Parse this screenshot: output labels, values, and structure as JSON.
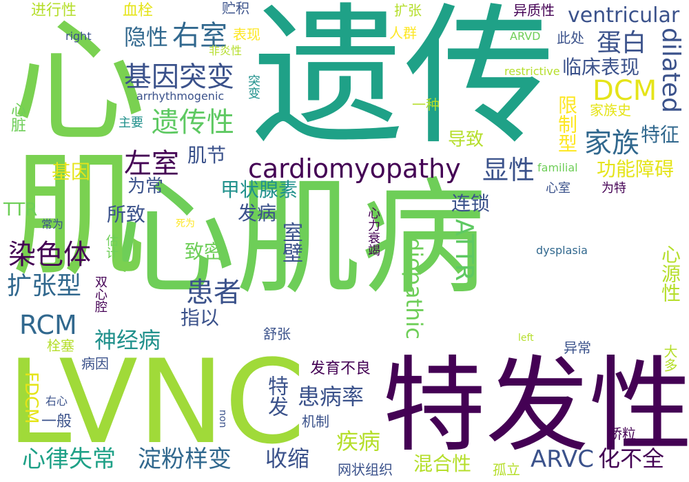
{
  "palette": {
    "purple": "#440154",
    "indigo": "#3b528b",
    "blue": "#31688e",
    "teal": "#21918c",
    "green_teal": "#1fa187",
    "green": "#5ec962",
    "lime": "#8fd744",
    "yellow_green": "#b5de2b",
    "yellow": "#e5e419",
    "pale_yellow": "#fde725"
  },
  "words": [
    {
      "text": "心肌病",
      "color": "#6ece58"
    },
    {
      "text": "遗传",
      "color": "#1fa187"
    },
    {
      "text": "心肌",
      "color": "#7ad151"
    },
    {
      "text": "LVNC",
      "color": "#a0da39"
    },
    {
      "text": "特发性",
      "color": "#440154"
    },
    {
      "text": "cardiomyopathy",
      "color": "#440154"
    },
    {
      "text": "DCM",
      "color": "#e5e419"
    },
    {
      "text": "dilated",
      "color": "#3b528b"
    },
    {
      "text": "ventricular",
      "color": "#3b528b"
    },
    {
      "text": "右室",
      "color": "#31688e"
    },
    {
      "text": "基因突变",
      "color": "#3b528b"
    },
    {
      "text": "遗传性",
      "color": "#5ec962"
    },
    {
      "text": "左室",
      "color": "#440154"
    },
    {
      "text": "肌节",
      "color": "#3b528b"
    },
    {
      "text": "显性",
      "color": "#3b528b"
    },
    {
      "text": "家族",
      "color": "#31688e"
    },
    {
      "text": "染色体",
      "color": "#440154"
    },
    {
      "text": "扩张型",
      "color": "#31688e"
    },
    {
      "text": "患者",
      "color": "#3b528b"
    },
    {
      "text": "RCM",
      "color": "#31688e"
    },
    {
      "text": "神经病",
      "color": "#21918c"
    },
    {
      "text": "心律失常",
      "color": "#1fa187"
    },
    {
      "text": "淀粉样变",
      "color": "#31688e"
    },
    {
      "text": "ARVC",
      "color": "#3b528b"
    },
    {
      "text": "疾病",
      "color": "#b5de2b"
    },
    {
      "text": "收缩",
      "color": "#3b528b"
    },
    {
      "text": "患病率",
      "color": "#3b528b"
    },
    {
      "text": "ATTR",
      "color": "#5ec962"
    },
    {
      "text": "idiopathic",
      "color": "#6ece58"
    },
    {
      "text": "甲状腺素",
      "color": "#21918c"
    },
    {
      "text": "连锁",
      "color": "#3b528b"
    },
    {
      "text": "蛋白",
      "color": "#3b528b"
    },
    {
      "text": "临床表现",
      "color": "#3b528b"
    },
    {
      "text": "功能障碍",
      "color": "#e5e419"
    },
    {
      "text": "限制型",
      "color": "#fde725"
    },
    {
      "text": "特征",
      "color": "#31688e"
    },
    {
      "text": "隐性",
      "color": "#31688e"
    },
    {
      "text": "化不全",
      "color": "#440154"
    },
    {
      "text": "混合性",
      "color": "#b5de2b"
    },
    {
      "text": "发育不良",
      "color": "#440154"
    },
    {
      "text": "室壁",
      "color": "#3b528b"
    },
    {
      "text": "心源性",
      "color": "#b5de2b"
    },
    {
      "text": "发病",
      "color": "#3b528b"
    },
    {
      "text": "所致",
      "color": "#3b528b"
    },
    {
      "text": "指以",
      "color": "#3b528b"
    },
    {
      "text": "致密",
      "color": "#6ece58"
    },
    {
      "text": "为常",
      "color": "#3b528b"
    },
    {
      "text": "基因",
      "color": "#e5e419"
    },
    {
      "text": "导致",
      "color": "#b5de2b"
    },
    {
      "text": "家族史",
      "color": "#e5e419"
    },
    {
      "text": "特发",
      "color": "#3b528b"
    },
    {
      "text": "心力衰竭",
      "color": "#440154"
    },
    {
      "text": "心脏",
      "color": "#6ece58"
    },
    {
      "text": "TTR",
      "color": "#6ece58"
    },
    {
      "text": "FDCM",
      "color": "#e5e419"
    },
    {
      "text": "进行性",
      "color": "#b5de2b"
    },
    {
      "text": "血栓",
      "color": "#e5e419"
    },
    {
      "text": "贮积",
      "color": "#3b528b"
    },
    {
      "text": "扩张",
      "color": "#b5de2b"
    },
    {
      "text": "异质性",
      "color": "#440154"
    },
    {
      "text": "人群",
      "color": "#fde725"
    },
    {
      "text": "表现",
      "color": "#fde725"
    },
    {
      "text": "此处",
      "color": "#3b528b"
    },
    {
      "text": "right",
      "color": "#3b528b"
    },
    {
      "text": "ARVD",
      "color": "#6ece58"
    },
    {
      "text": "非炎性",
      "color": "#b5de2b"
    },
    {
      "text": "restrictive",
      "color": "#b5de2b"
    },
    {
      "text": "突变",
      "color": "#21918c"
    },
    {
      "text": "一种",
      "color": "#b5de2b"
    },
    {
      "text": "arrhythmogenic",
      "color": "#3b528b"
    },
    {
      "text": "主要",
      "color": "#21918c"
    },
    {
      "text": "familial",
      "color": "#6ece58"
    },
    {
      "text": "心室",
      "color": "#3b528b"
    },
    {
      "text": "为特",
      "color": "#440154"
    },
    {
      "text": "常为",
      "color": "#3b528b"
    },
    {
      "text": "死为",
      "color": "#fde725"
    },
    {
      "text": "估计",
      "color": "#6ece58"
    },
    {
      "text": "dysplasia",
      "color": "#31688e"
    },
    {
      "text": "双心腔",
      "color": "#440154"
    },
    {
      "text": "舒张",
      "color": "#3b528b"
    },
    {
      "text": "栓塞",
      "color": "#b5de2b"
    },
    {
      "text": "病因",
      "color": "#3b528b"
    },
    {
      "text": "left",
      "color": "#b5de2b"
    },
    {
      "text": "异常",
      "color": "#3b528b"
    },
    {
      "text": "大多",
      "color": "#b5de2b"
    },
    {
      "text": "右心",
      "color": "#3b528b"
    },
    {
      "text": "一般",
      "color": "#3b528b"
    },
    {
      "text": "机制",
      "color": "#3b528b"
    },
    {
      "text": "non",
      "color": "#3b528b"
    },
    {
      "text": "桥粒",
      "color": "#440154"
    },
    {
      "text": "网状组织",
      "color": "#3b528b"
    },
    {
      "text": "孤立",
      "color": "#b5de2b"
    }
  ]
}
